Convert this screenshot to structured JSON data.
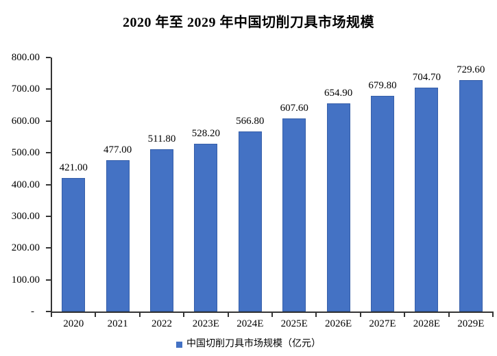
{
  "chart_data": {
    "type": "bar",
    "title": "2020 年至 2029 年中国切削刀具市场规模",
    "categories": [
      "2020",
      "2021",
      "2022",
      "2023E",
      "2024E",
      "2025E",
      "2026E",
      "2027E",
      "2028E",
      "2029E"
    ],
    "values": [
      421.0,
      477.0,
      511.8,
      528.2,
      566.8,
      607.6,
      654.9,
      679.8,
      704.7,
      729.6
    ],
    "data_labels": [
      "421.00",
      "477.00",
      "511.80",
      "528.20",
      "566.80",
      "607.60",
      "654.90",
      "679.80",
      "704.70",
      "729.60"
    ],
    "xlabel": "",
    "ylabel": "",
    "ylim": [
      0,
      800
    ],
    "ytick_interval": 100,
    "ytick_labels": [
      "-",
      "100.00",
      "200.00",
      "300.00",
      "400.00",
      "500.00",
      "600.00",
      "700.00",
      "800.00"
    ],
    "grid": false,
    "legend": {
      "position": "bottom",
      "items": [
        {
          "label": "中国切削刀具市场规模（亿元）",
          "color": "#4472C4"
        }
      ]
    },
    "colors": {
      "bar_fill": "#4472C4",
      "bar_border": "#355EA8",
      "axis": "#333333",
      "text": "#000000"
    }
  }
}
